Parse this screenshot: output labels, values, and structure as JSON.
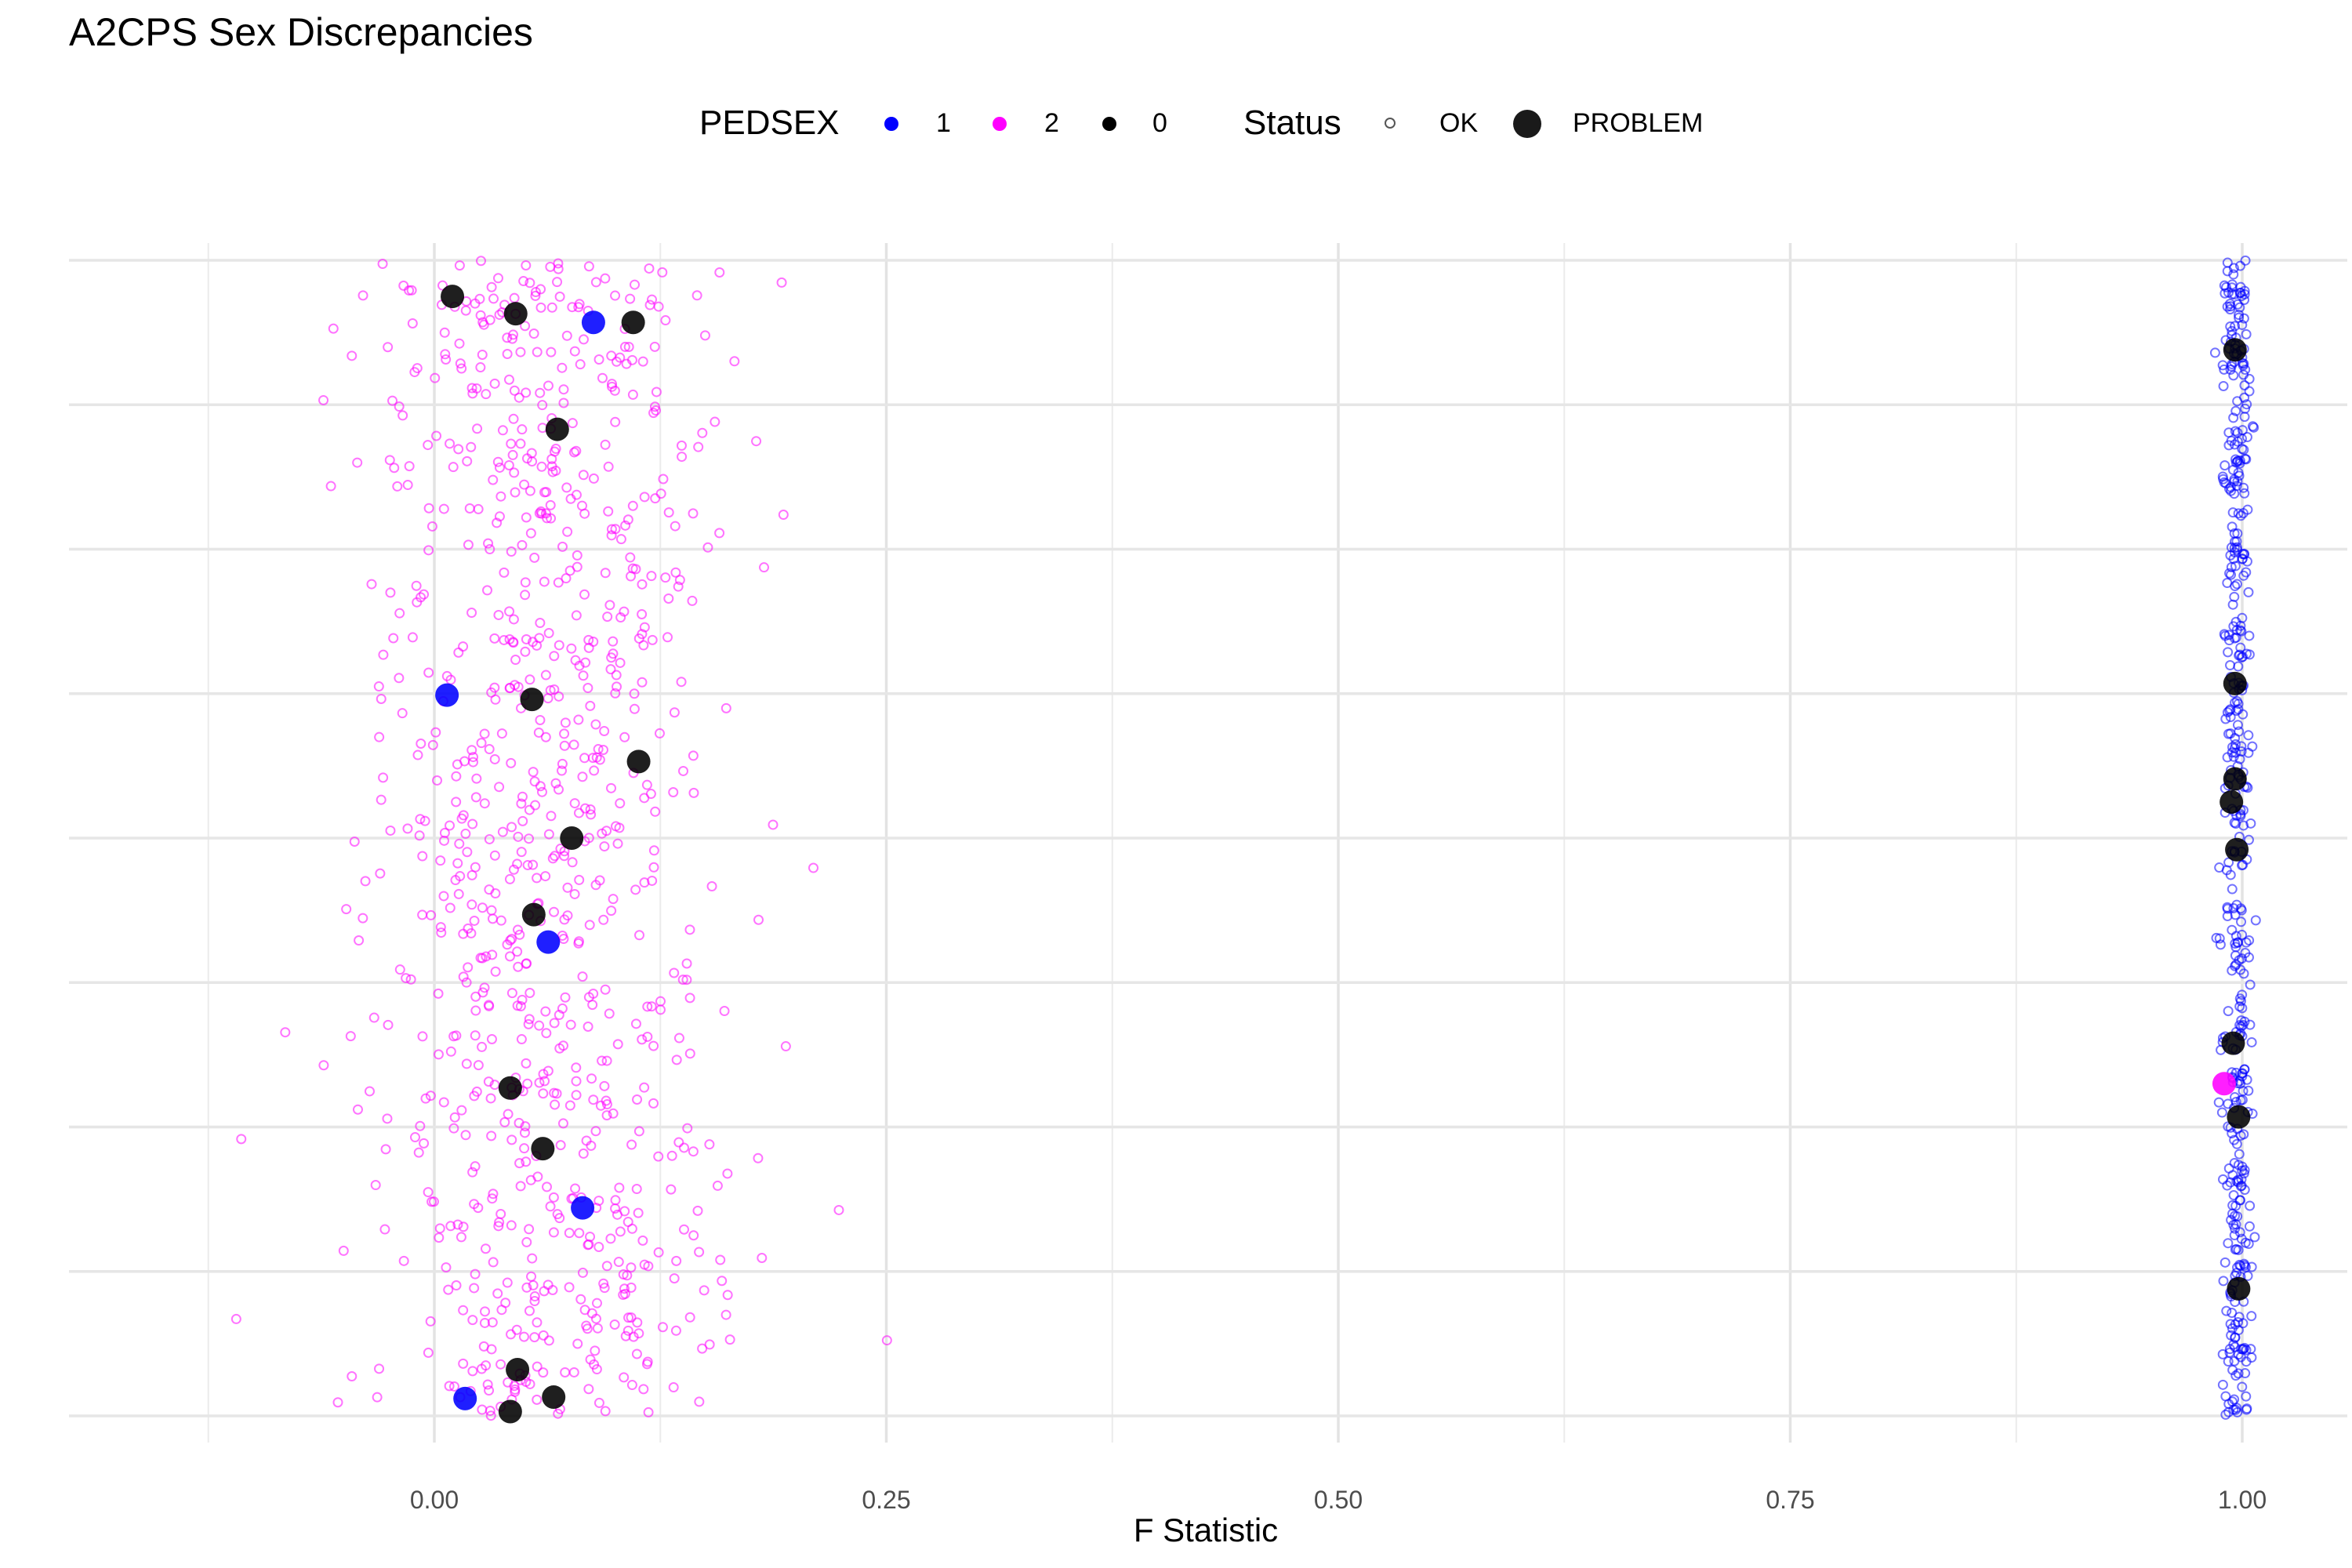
{
  "chart_data": {
    "type": "scatter",
    "title": "A2CPS Sex Discrepancies",
    "xlabel": "F Statistic",
    "ylabel": "",
    "xlim": [
      -0.1,
      1.1
    ],
    "x_ticks": [
      "0.00",
      "0.25",
      "0.50",
      "0.75",
      "1.00"
    ],
    "x_tick_values": [
      0.0,
      0.25,
      0.5,
      0.75,
      1.0
    ],
    "y_axis": "categorical jitter (no labels), 8 rows",
    "grid": true,
    "legend_position": "top",
    "legend": {
      "color_title": "PEDSEX",
      "color_entries": [
        {
          "label": "1",
          "color": "#0000ff"
        },
        {
          "label": "2",
          "color": "#ff00ff"
        },
        {
          "label": "0",
          "color": "#000000"
        }
      ],
      "shape_title": "Status",
      "shape_entries": [
        {
          "label": "OK",
          "style": "small-open-circle"
        },
        {
          "label": "PROBLEM",
          "style": "large-filled-circle"
        }
      ]
    },
    "clusters": [
      {
        "pedsex": "2",
        "status": "OK",
        "x_center": 0.06,
        "x_spread": 0.05,
        "count": 900,
        "color": "#ff00ff"
      },
      {
        "pedsex": "1",
        "status": "OK",
        "x_center": 0.997,
        "x_spread": 0.004,
        "count": 450,
        "color": "#0000ff"
      }
    ],
    "series": [
      {
        "name": "PEDSEX 0 PROBLEM",
        "color": "#000000",
        "points": [
          {
            "x": 0.01,
            "y": 7.75
          },
          {
            "x": 0.045,
            "y": 7.63
          },
          {
            "x": 0.11,
            "y": 7.57
          },
          {
            "x": 0.068,
            "y": 6.83
          },
          {
            "x": 0.054,
            "y": 4.96
          },
          {
            "x": 0.113,
            "y": 4.53
          },
          {
            "x": 0.076,
            "y": 4.0
          },
          {
            "x": 0.055,
            "y": 3.47
          },
          {
            "x": 0.042,
            "y": 2.27
          },
          {
            "x": 0.06,
            "y": 1.85
          },
          {
            "x": 0.046,
            "y": 0.32
          },
          {
            "x": 0.066,
            "y": 0.13
          },
          {
            "x": 0.042,
            "y": 0.03
          },
          {
            "x": 0.996,
            "y": 7.38
          },
          {
            "x": 0.996,
            "y": 5.07
          },
          {
            "x": 0.996,
            "y": 4.41
          },
          {
            "x": 0.994,
            "y": 4.25
          },
          {
            "x": 0.997,
            "y": 3.92
          },
          {
            "x": 0.995,
            "y": 2.58
          },
          {
            "x": 0.998,
            "y": 2.07
          },
          {
            "x": 0.998,
            "y": 0.88
          }
        ]
      },
      {
        "name": "PEDSEX 1 PROBLEM",
        "color": "#0000ff",
        "points": [
          {
            "x": 0.088,
            "y": 7.57
          },
          {
            "x": 0.007,
            "y": 4.99
          },
          {
            "x": 0.063,
            "y": 3.28
          },
          {
            "x": 0.082,
            "y": 1.44
          },
          {
            "x": 0.017,
            "y": 0.12
          }
        ]
      },
      {
        "name": "PEDSEX 2 PROBLEM",
        "color": "#ff00ff",
        "points": [
          {
            "x": 0.99,
            "y": 2.3
          }
        ]
      }
    ]
  }
}
